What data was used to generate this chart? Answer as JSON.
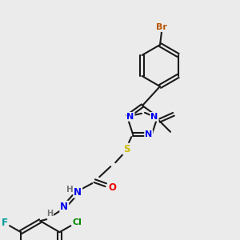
{
  "bg_color": "#ebebeb",
  "bond_color": "#1a1a1a",
  "atom_colors": {
    "N": "#0000ee",
    "S": "#ccbb00",
    "O": "#ee0000",
    "F": "#009999",
    "Cl": "#008800",
    "Br": "#bb5500",
    "H": "#777777"
  },
  "lw": 1.5,
  "fs": 8.5
}
